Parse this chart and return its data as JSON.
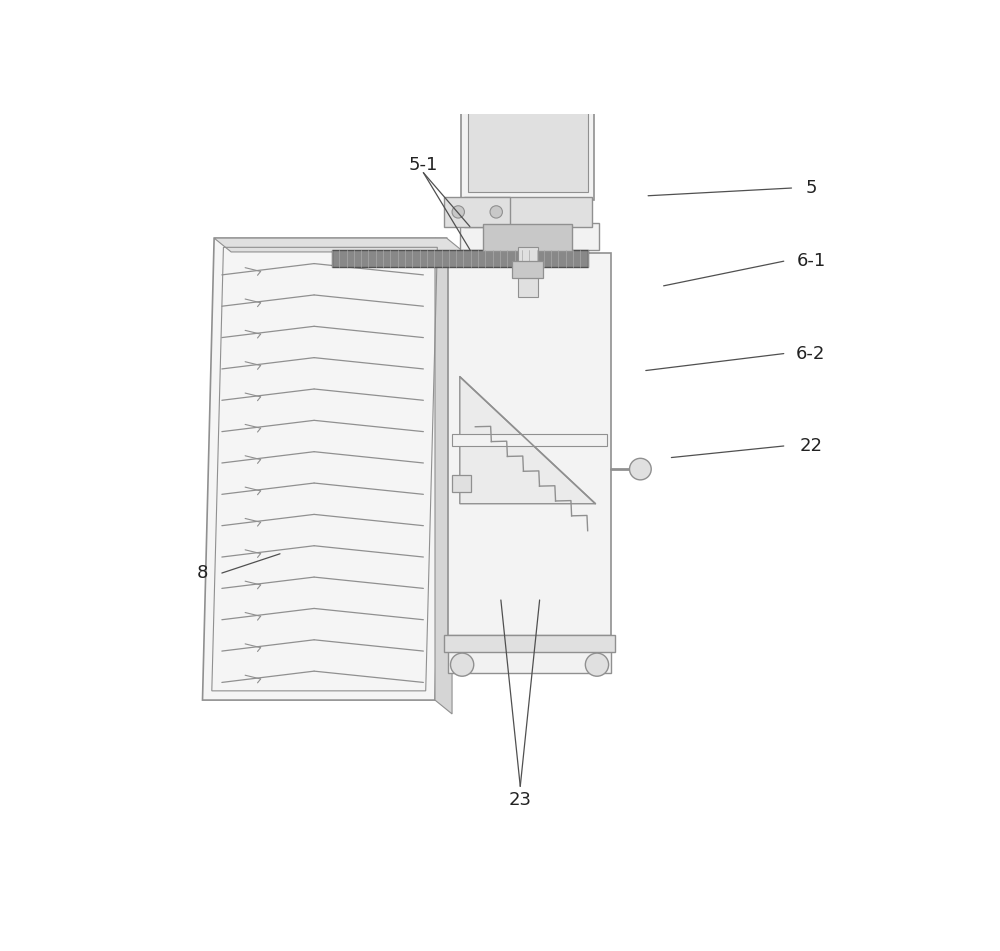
{
  "bg_color": "#ffffff",
  "lc": "#909090",
  "dc": "#505050",
  "fc_light": "#f2f2f2",
  "fc_med": "#e0e0e0",
  "fc_dark": "#c8c8c8",
  "label_fs": 13,
  "label_color": "#222222",
  "fig_w": 10.0,
  "fig_h": 9.51
}
